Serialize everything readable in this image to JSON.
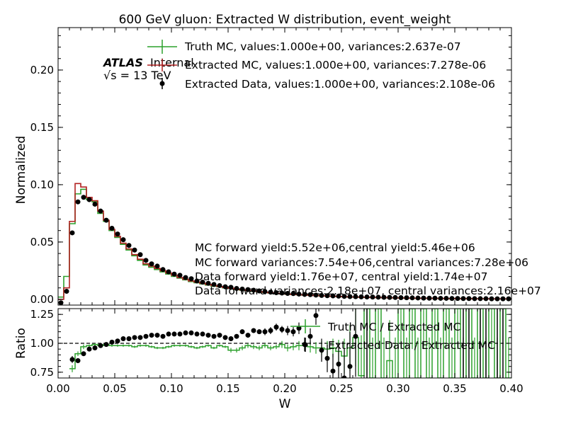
{
  "chart_data": [
    {
      "type": "line",
      "title": "600 GeV gluon: Extracted W distribution, event_weight",
      "xlabel": "",
      "ylabel": "Normalized",
      "xlim": [
        0.0,
        0.4
      ],
      "ylim": [
        -0.005,
        0.237
      ],
      "xticks": [
        0.0,
        0.05,
        0.1,
        0.15,
        0.2,
        0.25,
        0.3,
        0.35,
        0.4
      ],
      "yticks": [
        0.0,
        0.05,
        0.1,
        0.15,
        0.2
      ],
      "ytick_labels": [
        "0.00",
        "0.05",
        "0.10",
        "0.15",
        "0.20"
      ],
      "x_bin_edges": [
        0.0,
        0.005,
        0.01,
        0.015,
        0.02,
        0.025,
        0.03,
        0.035,
        0.04,
        0.045,
        0.05,
        0.055,
        0.06,
        0.065,
        0.07,
        0.075,
        0.08,
        0.085,
        0.09,
        0.095,
        0.1,
        0.105,
        0.11,
        0.115,
        0.12,
        0.125,
        0.13,
        0.135,
        0.14,
        0.145,
        0.15,
        0.155,
        0.16,
        0.165,
        0.17,
        0.175,
        0.18,
        0.185,
        0.19,
        0.195,
        0.2,
        0.205,
        0.21,
        0.215,
        0.22,
        0.225,
        0.23,
        0.235,
        0.24,
        0.245,
        0.25,
        0.255,
        0.26,
        0.265,
        0.27,
        0.275,
        0.28,
        0.285,
        0.29,
        0.295,
        0.3,
        0.305,
        0.31,
        0.315,
        0.32,
        0.325,
        0.33,
        0.335,
        0.34,
        0.345,
        0.35,
        0.355,
        0.36,
        0.365,
        0.37,
        0.375,
        0.38,
        0.385,
        0.39,
        0.395,
        0.4
      ],
      "series": [
        {
          "name": "Truth MC, values:1.000e+00, variances:2.637e-07",
          "style": "step",
          "color": "#2ca02c",
          "values": [
            0.002,
            0.02,
            0.066,
            0.092,
            0.096,
            0.087,
            0.085,
            0.075,
            0.068,
            0.06,
            0.054,
            0.048,
            0.043,
            0.038,
            0.034,
            0.03,
            0.028,
            0.026,
            0.024,
            0.022,
            0.02,
            0.0185,
            0.017,
            0.0155,
            0.0145,
            0.0135,
            0.0125,
            0.0115,
            0.011,
            0.01,
            0.0095,
            0.0085,
            0.008,
            0.0075,
            0.007,
            0.0065,
            0.006,
            0.0055,
            0.005,
            0.0048,
            0.0045,
            0.0042,
            0.004,
            0.0037,
            0.0035,
            0.0032,
            0.003,
            0.0028,
            0.0026,
            0.0024,
            0.0022,
            0.002,
            0.0019,
            0.0018,
            0.0017,
            0.0016,
            0.0015,
            0.0014,
            0.0013,
            0.0012,
            0.0011,
            0.001,
            0.001,
            0.0009,
            0.0009,
            0.0008,
            0.0008,
            0.0007,
            0.0007,
            0.0006,
            0.0006,
            0.0006,
            0.0005,
            0.0005,
            0.0005,
            0.0004,
            0.0004,
            0.0004,
            0.0004,
            0.0003
          ]
        },
        {
          "name": "Extracted MC, values:1.000e+00, variances:7.278e-06",
          "style": "step",
          "color": "#b22222",
          "values": [
            0.0,
            0.01,
            0.068,
            0.101,
            0.098,
            0.089,
            0.086,
            0.077,
            0.069,
            0.061,
            0.055,
            0.049,
            0.044,
            0.039,
            0.035,
            0.031,
            0.029,
            0.027,
            0.025,
            0.023,
            0.021,
            0.019,
            0.0175,
            0.016,
            0.015,
            0.014,
            0.013,
            0.012,
            0.0112,
            0.0103,
            0.0097,
            0.009,
            0.0083,
            0.0077,
            0.0072,
            0.0067,
            0.0062,
            0.0057,
            0.0052,
            0.0049,
            0.0046,
            0.0043,
            0.0041,
            0.0038,
            0.0036,
            0.0033,
            0.0031,
            0.0029,
            0.0027,
            0.0025,
            0.0023,
            0.0021,
            0.002,
            0.0019,
            0.0018,
            0.0017,
            0.0016,
            0.0015,
            0.0014,
            0.0013,
            0.0012,
            0.0011,
            0.001,
            0.001,
            0.0009,
            0.0009,
            0.0008,
            0.0008,
            0.0007,
            0.0007,
            0.0006,
            0.0006,
            0.0006,
            0.0005,
            0.0005,
            0.0005,
            0.0004,
            0.0004,
            0.0004,
            0.0004
          ]
        },
        {
          "name": "Extracted Data, values:1.000e+00, variances:2.108e-06",
          "style": "points",
          "color": "#000000",
          "values": [
            -0.003,
            0.007,
            0.058,
            0.085,
            0.089,
            0.087,
            0.083,
            0.077,
            0.069,
            0.062,
            0.057,
            0.052,
            0.047,
            0.043,
            0.039,
            0.034,
            0.031,
            0.029,
            0.026,
            0.024,
            0.022,
            0.021,
            0.019,
            0.018,
            0.016,
            0.015,
            0.014,
            0.013,
            0.012,
            0.011,
            0.0105,
            0.0095,
            0.009,
            0.0085,
            0.008,
            0.0073,
            0.0068,
            0.0063,
            0.0058,
            0.0055,
            0.0052,
            0.005,
            0.0046,
            0.0043,
            0.0041,
            0.0037,
            0.0034,
            0.0032,
            0.003,
            0.0028,
            0.0026,
            0.0024,
            0.0023,
            0.0022,
            0.0021,
            0.002,
            0.0019,
            0.0018,
            0.0017,
            0.0016,
            0.0015,
            0.0014,
            0.0013,
            0.0012,
            0.0011,
            0.001,
            0.001,
            0.0009,
            0.0009,
            0.0008,
            0.0008,
            0.0007,
            0.0007,
            0.0006,
            0.0006,
            0.0006,
            0.0005,
            0.0005,
            0.0005,
            0.0005
          ]
        }
      ],
      "annotations": [
        "MC forward yield:5.52e+06,central yield:5.46e+06",
        "MC forward variances:7.54e+06,central variances:7.28e+06",
        "Data forward yield:1.76e+07, central yield:1.74e+07",
        "Data forward variances:2.18e+07, central variances:2.16e+07"
      ],
      "atlas_label": "ATLAS",
      "atlas_status": "Internal",
      "energy_label": "√s =  13 TeV",
      "legend_position": "top-right",
      "grid": false
    },
    {
      "type": "line",
      "xlabel": "W",
      "ylabel": "Ratio",
      "xlim": [
        0.0,
        0.4
      ],
      "ylim": [
        0.7,
        1.3
      ],
      "xticks": [
        0.0,
        0.05,
        0.1,
        0.15,
        0.2,
        0.25,
        0.3,
        0.35,
        0.4
      ],
      "xtick_labels": [
        "0.00",
        "0.05",
        "0.10",
        "0.15",
        "0.20",
        "0.25",
        "0.30",
        "0.35",
        "0.40"
      ],
      "yticks": [
        0.75,
        1.0,
        1.25
      ],
      "ytick_labels": [
        "0.75",
        "1.00",
        "1.25"
      ],
      "reference_line": 1.0,
      "series": [
        {
          "name": "Truth MC / Extracted MC",
          "style": "step",
          "color": "#2ca02c",
          "values": [
            null,
            null,
            0.78,
            0.91,
            0.97,
            0.98,
            0.99,
            0.98,
            0.99,
            0.98,
            0.98,
            0.98,
            0.98,
            0.97,
            0.98,
            0.98,
            0.97,
            0.96,
            0.96,
            0.97,
            0.98,
            0.98,
            0.98,
            0.97,
            0.96,
            0.97,
            0.98,
            0.96,
            0.98,
            0.97,
            0.94,
            0.94,
            0.96,
            0.98,
            0.97,
            0.96,
            0.98,
            0.96,
            0.97,
            0.99,
            0.96,
            0.97,
            0.98,
            0.98,
            0.97,
            0.96,
            0.96,
            0.95,
            0.96,
            0.93,
            0.89,
            0.96,
            1.05,
            0.72,
            1.3,
            0.7,
            1.3,
            0.7,
            0.85,
            0.7,
            1.3,
            0.7,
            1.3,
            0.7,
            1.3,
            0.7,
            1.3,
            0.7,
            1.3,
            0.7,
            1.3,
            0.7,
            1.3,
            0.7,
            1.3,
            0.7,
            1.3,
            0.7,
            1.3,
            0.7
          ],
          "errors": [
            0,
            0,
            0.03,
            0.02,
            0.02,
            0.01,
            0.01,
            0.01,
            0.01,
            0.01,
            0.01,
            0.01,
            0.01,
            0.01,
            0.01,
            0.01,
            0.01,
            0.01,
            0.01,
            0.01,
            0.01,
            0.01,
            0.01,
            0.01,
            0.01,
            0.01,
            0.01,
            0.01,
            0.01,
            0.01,
            0.02,
            0.02,
            0.02,
            0.02,
            0.02,
            0.02,
            0.02,
            0.02,
            0.02,
            0.03,
            0.03,
            0.03,
            0.04,
            0.04,
            0.05,
            0.05,
            0.06,
            0.07,
            0.08,
            0.1,
            0.15,
            0.2,
            0.25,
            0.35,
            0.35,
            0.35,
            0.35,
            0.35,
            0.35,
            0.35,
            0.35,
            0.35,
            0.35,
            0.35,
            0.35,
            0.35,
            0.35,
            0.35,
            0.35,
            0.35,
            0.35,
            0.35,
            0.35,
            0.35,
            0.35,
            0.35,
            0.35,
            0.35,
            0.35,
            0.35
          ]
        },
        {
          "name": "Extracted Data / Extracted MC",
          "style": "points",
          "color": "#000000",
          "values": [
            null,
            null,
            0.86,
            0.85,
            0.91,
            0.95,
            0.96,
            0.98,
            0.99,
            1.01,
            1.02,
            1.04,
            1.04,
            1.05,
            1.05,
            1.06,
            1.07,
            1.07,
            1.06,
            1.08,
            1.08,
            1.08,
            1.09,
            1.09,
            1.08,
            1.08,
            1.07,
            1.06,
            1.07,
            1.05,
            1.04,
            1.06,
            1.1,
            1.07,
            1.11,
            1.1,
            1.1,
            1.11,
            1.14,
            1.12,
            1.11,
            1.1,
            1.13,
            0.99,
            1.06,
            1.24,
            0.94,
            0.87,
            0.76,
            0.82,
            0.7,
            0.8,
            1.06,
            null,
            null,
            null,
            null,
            null,
            null,
            null,
            null,
            null,
            null,
            null,
            null,
            null,
            null,
            null,
            null,
            null,
            null,
            null,
            null,
            null,
            null,
            null,
            null,
            null,
            null,
            null
          ],
          "errors": [
            0,
            0,
            0.03,
            0.02,
            0.02,
            0.01,
            0.01,
            0.01,
            0.01,
            0.01,
            0.01,
            0.01,
            0.01,
            0.01,
            0.01,
            0.01,
            0.01,
            0.01,
            0.01,
            0.01,
            0.01,
            0.01,
            0.01,
            0.01,
            0.01,
            0.01,
            0.01,
            0.01,
            0.01,
            0.02,
            0.02,
            0.02,
            0.02,
            0.02,
            0.02,
            0.02,
            0.03,
            0.03,
            0.03,
            0.03,
            0.04,
            0.04,
            0.05,
            0.06,
            0.07,
            0.08,
            0.1,
            0.12,
            0.15,
            0.18,
            0.25,
            0.3,
            0.35,
            0,
            0,
            0,
            0,
            0,
            0,
            0,
            0,
            0,
            0,
            0,
            0,
            0,
            0,
            0,
            0,
            0,
            0,
            0,
            0,
            0,
            0,
            0,
            0,
            0,
            0,
            0
          ]
        }
      ],
      "legend_position": "top-right",
      "grid": false
    }
  ]
}
